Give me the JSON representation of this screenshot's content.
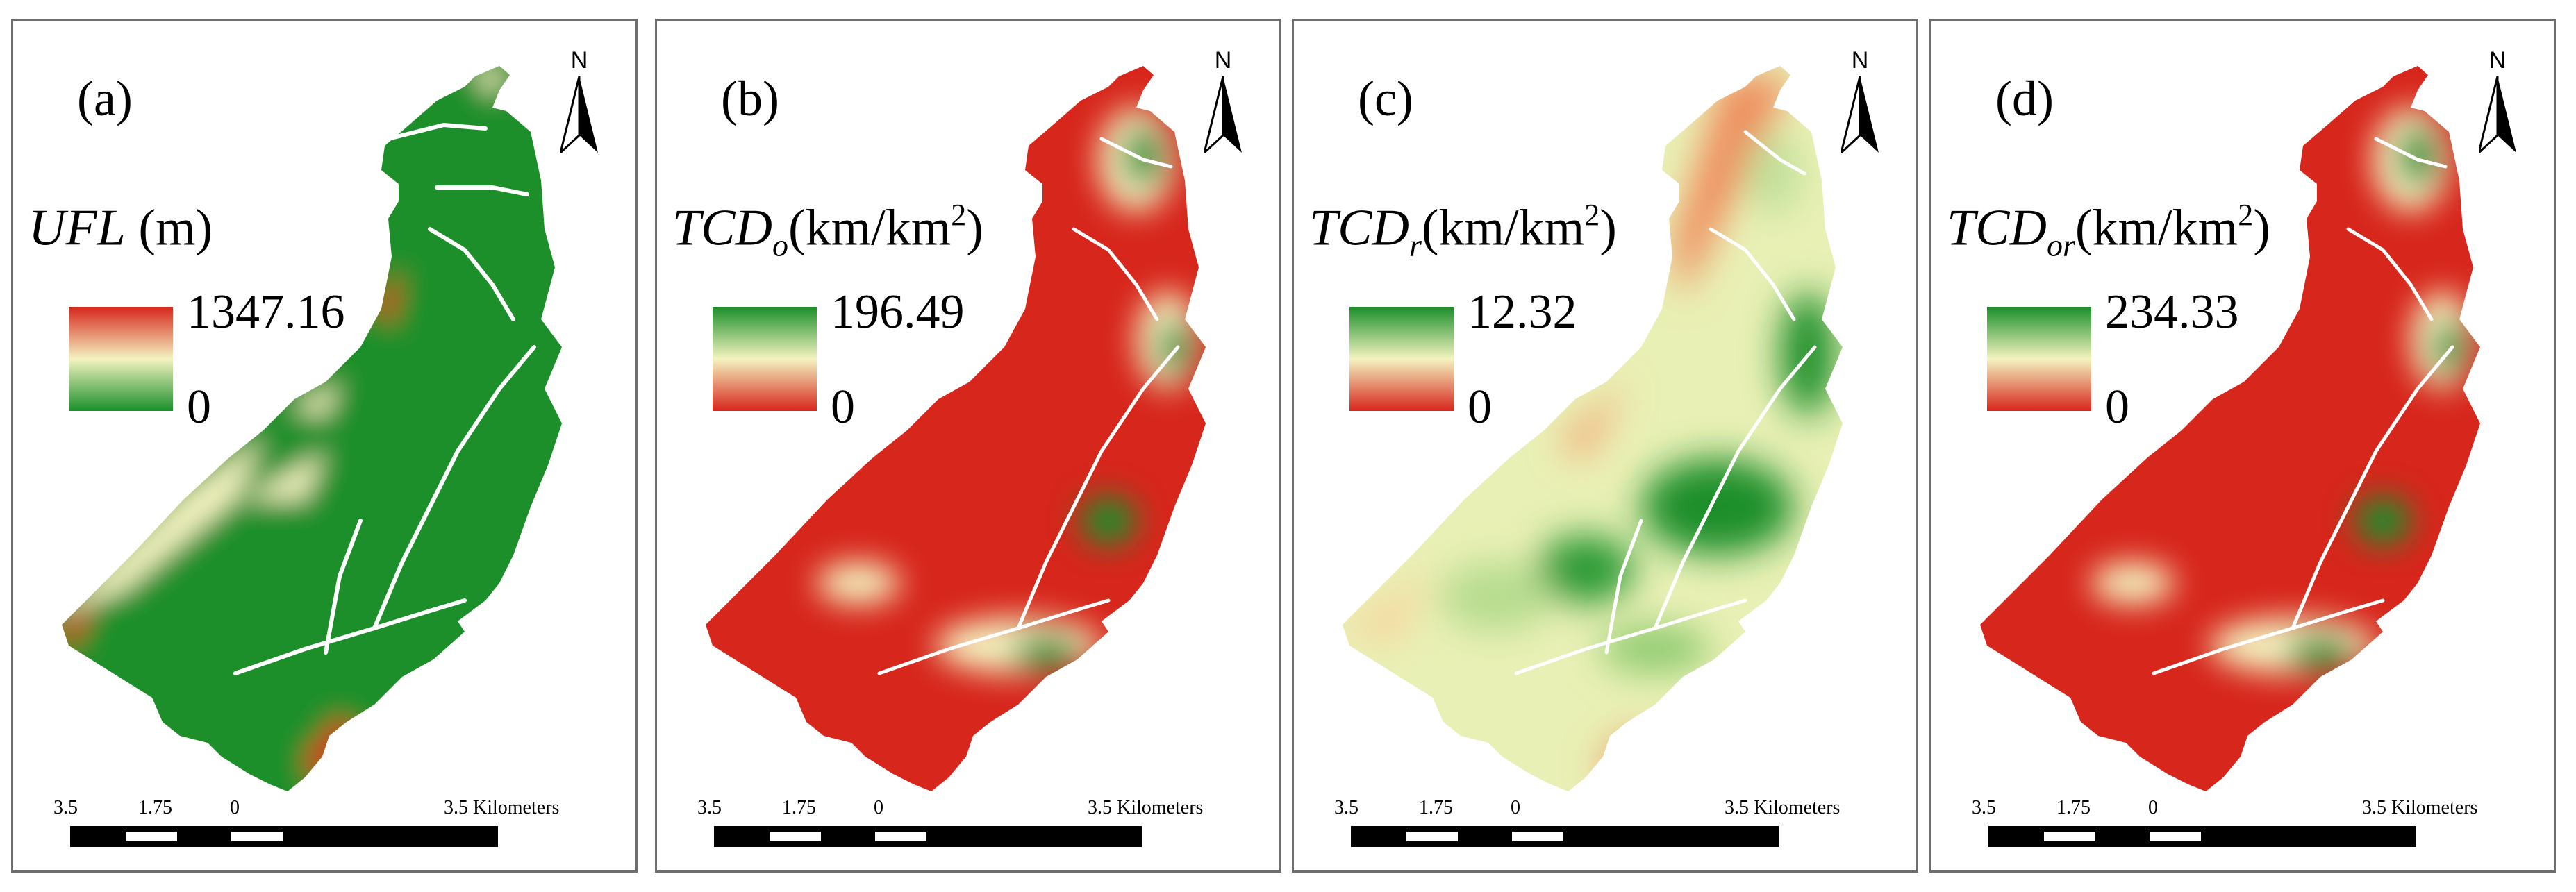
{
  "scale_labels": {
    "left": "3.5",
    "mid": "1.75",
    "zero": "0",
    "right": "3.5 Kilometers"
  },
  "north_label": "N",
  "panels": [
    {
      "label": "(a)",
      "var_main": "UFL",
      "var_sub": "",
      "unit_pre": " (m)",
      "unit_sup": "",
      "unit_post": "",
      "legend_max": "1347.16",
      "legend_min": "0",
      "ramp": "red-high"
    },
    {
      "label": "(b)",
      "var_main": "TCD",
      "var_sub": "o",
      "unit_pre": "(km/km",
      "unit_sup": "2",
      "unit_post": ")",
      "legend_max": "196.49",
      "legend_min": "0",
      "ramp": "green-high"
    },
    {
      "label": "(c)",
      "var_main": "TCD",
      "var_sub": "r",
      "unit_pre": "(km/km",
      "unit_sup": "2",
      "unit_post": ")",
      "legend_max": "12.32",
      "legend_min": "0",
      "ramp": "green-high"
    },
    {
      "label": "(d)",
      "var_main": "TCD",
      "var_sub": "or",
      "unit_pre": "(km/km",
      "unit_sup": "2",
      "unit_post": ")",
      "legend_max": "234.33",
      "legend_min": "0",
      "ramp": "green-high"
    }
  ],
  "colors": {
    "green": "#1a8f2a",
    "yellow": "#f4f3c0",
    "red": "#d7261c",
    "frame": "#6e6e6e"
  }
}
